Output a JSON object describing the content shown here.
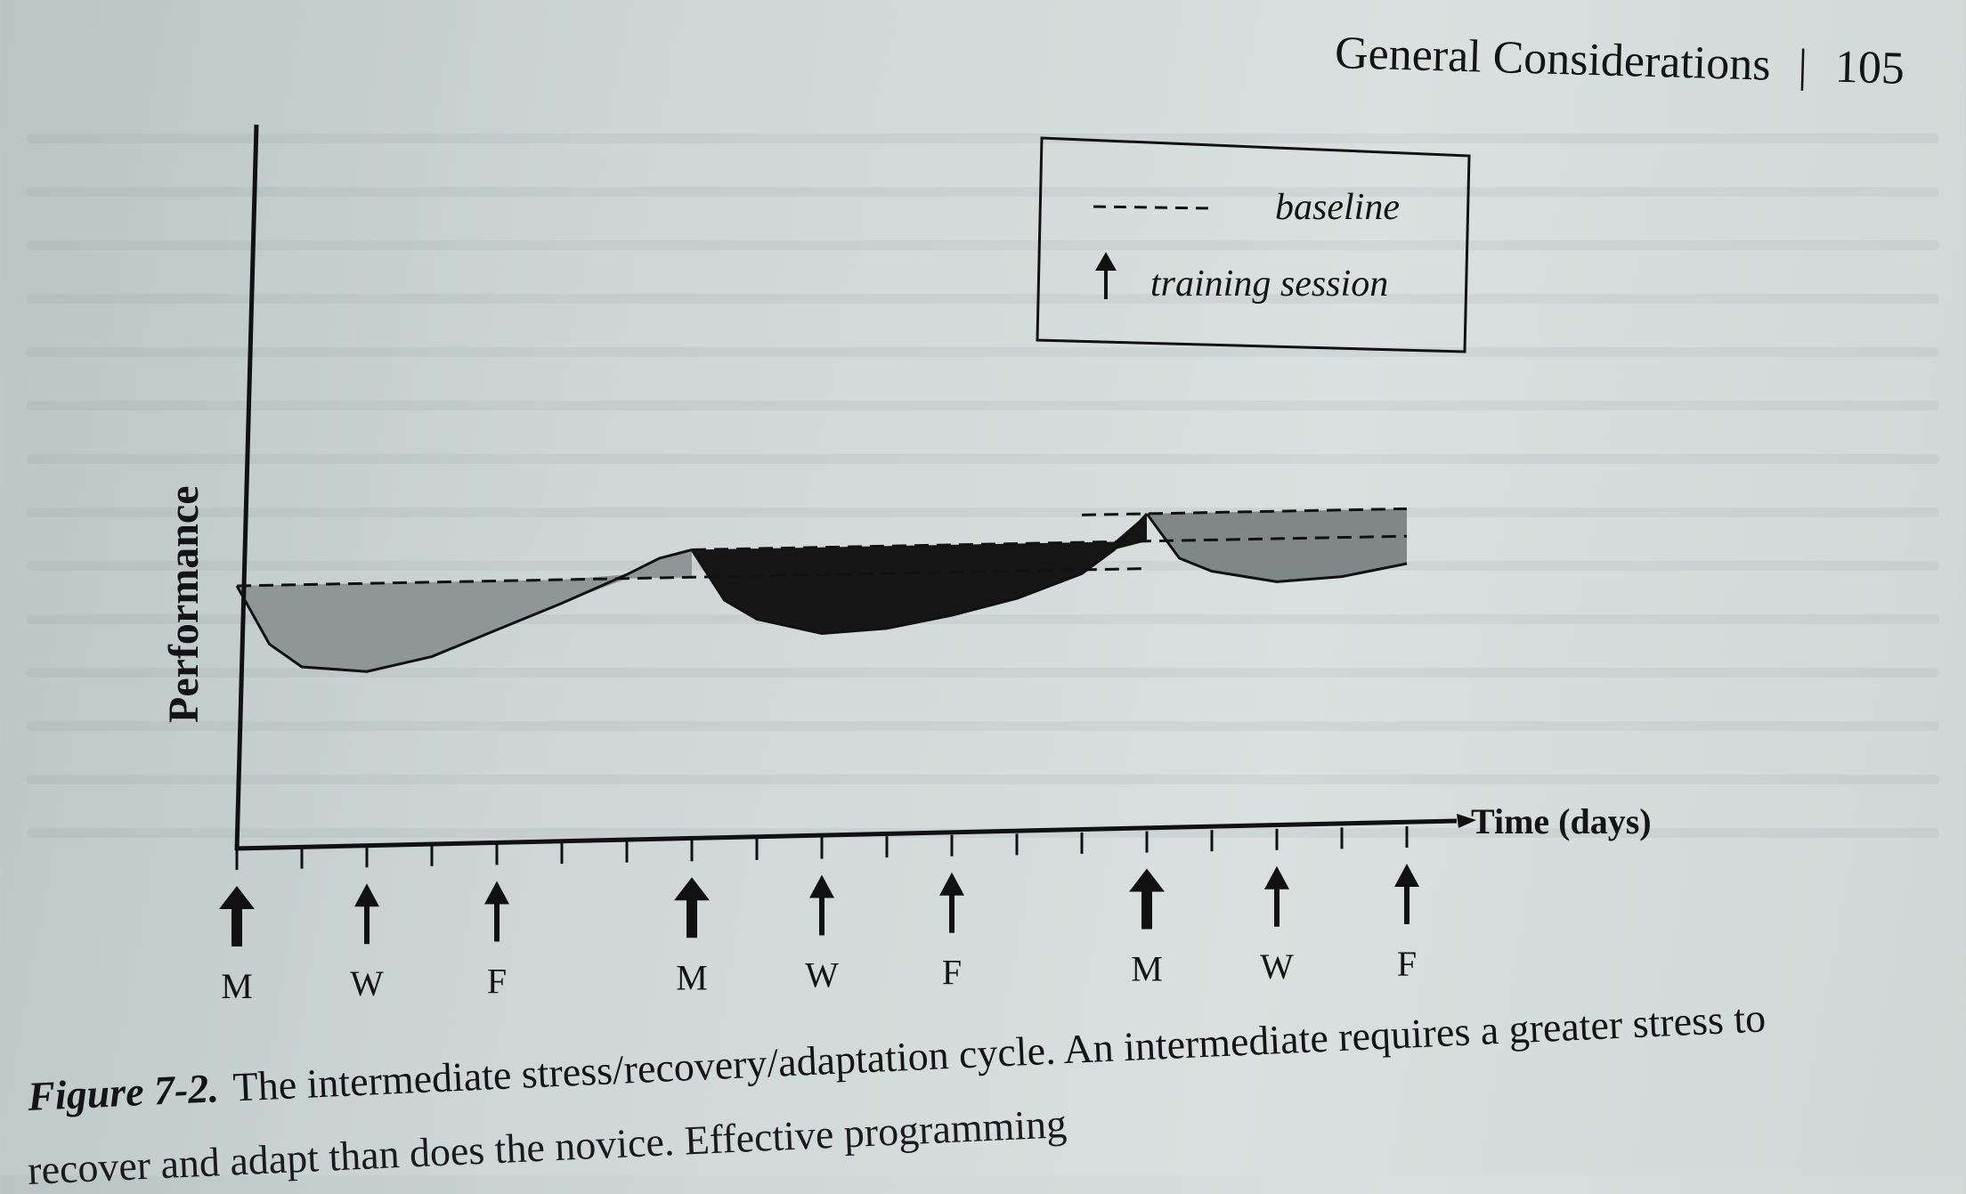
{
  "header": {
    "section_title": "General Considerations",
    "separator": "|",
    "page_number": "105"
  },
  "legend": {
    "baseline_label": "baseline",
    "training_label": "training session"
  },
  "chart_data": {
    "type": "line",
    "title": "",
    "ylabel": "Performance",
    "xlabel": "Time (days)",
    "x_day_labels": [
      "M",
      "W",
      "F",
      "M",
      "W",
      "F",
      "M",
      "W",
      "F"
    ],
    "training_session_days": [
      0,
      2,
      4,
      7,
      9,
      11,
      14,
      16,
      18
    ],
    "tick_days": [
      0,
      1,
      2,
      3,
      4,
      5,
      6,
      7,
      8,
      9,
      10,
      11,
      12,
      13,
      14,
      15,
      16,
      17,
      18
    ],
    "xlim": [
      0,
      18
    ],
    "baselines": [
      {
        "level": 0,
        "from_day": 0,
        "to_day": 14
      },
      {
        "level": 0.14,
        "from_day": 7,
        "to_day": 18
      },
      {
        "level": 0.28,
        "from_day": 13,
        "to_day": 18
      }
    ],
    "series": [
      {
        "x": [
          0,
          0.5,
          1,
          2,
          3,
          4,
          5,
          6,
          6.5,
          7
        ],
        "y": [
          0,
          -0.3,
          -0.42,
          -0.45,
          -0.38,
          -0.25,
          -0.12,
          0.02,
          0.1,
          0.14
        ]
      },
      {
        "x": [
          7,
          7.5,
          8,
          9,
          10,
          11,
          12,
          13,
          13.5,
          14
        ],
        "y": [
          0.14,
          -0.12,
          -0.22,
          -0.3,
          -0.28,
          -0.22,
          -0.14,
          -0.02,
          0.1,
          0.28
        ]
      },
      {
        "x": [
          14,
          14.5,
          15,
          16,
          17,
          18
        ],
        "y": [
          0.28,
          0.05,
          -0.02,
          -0.08,
          -0.06,
          0.0
        ]
      }
    ]
  },
  "caption": {
    "label": "Figure 7-2.",
    "text": "The intermediate stress/recovery/adaptation cycle. An intermediate requires a greater stress to",
    "line2": "recover and adapt than does the novice. Effective programming"
  }
}
